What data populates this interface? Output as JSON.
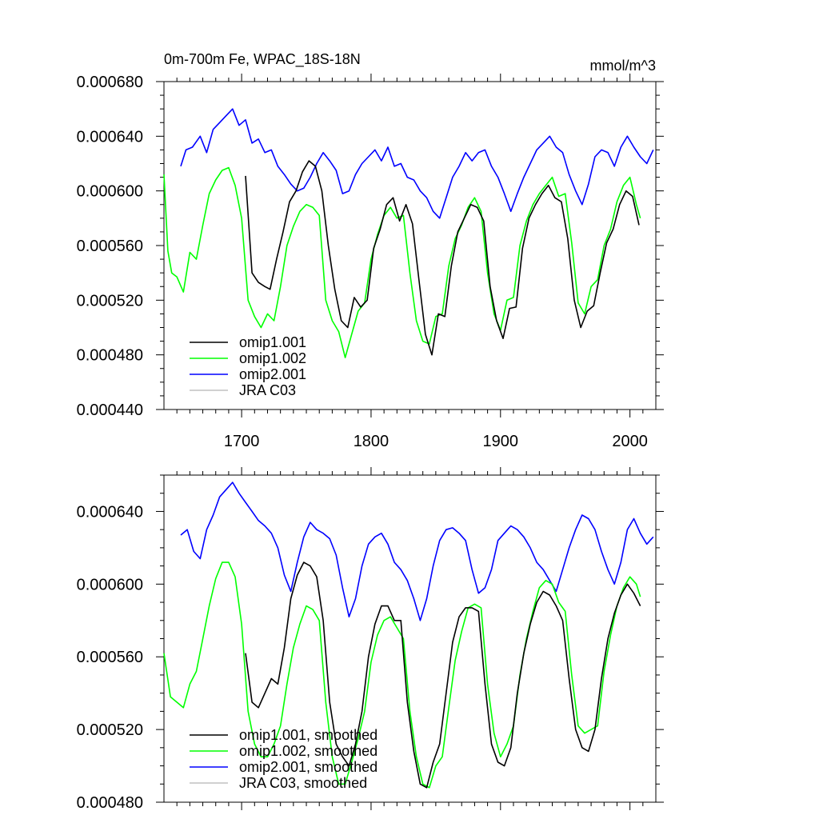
{
  "chart_data": [
    {
      "type": "line",
      "title": "0m-700m Fe, WPAC_18S-18N",
      "units": "mmol/m^3",
      "xlim": [
        1640,
        2020
      ],
      "ylim": [
        0.00044,
        0.00068
      ],
      "xticks": [
        "1700",
        "1800",
        "1900",
        "2000"
      ],
      "yticks": [
        "0.000440",
        "0.000480",
        "0.000520",
        "0.000560",
        "0.000600",
        "0.000640",
        "0.000680"
      ],
      "legend_position": "bottom-left",
      "series": [
        {
          "name": "omip1.001",
          "color": "#000000",
          "x": [
            1703,
            1708,
            1713,
            1718,
            1722,
            1727,
            1732,
            1737,
            1742,
            1747,
            1752,
            1757,
            1762,
            1767,
            1772,
            1777,
            1782,
            1787,
            1792,
            1797,
            1802,
            1807,
            1812,
            1817,
            1822,
            1827,
            1832,
            1837,
            1842,
            1847,
            1852,
            1857,
            1862,
            1867,
            1872,
            1877,
            1882,
            1887,
            1892,
            1897,
            1902,
            1907,
            1912,
            1917,
            1922,
            1927,
            1932,
            1937,
            1942,
            1947,
            1952,
            1957,
            1962,
            1967,
            1972,
            1977,
            1982,
            1987,
            1992,
            1997,
            2002,
            2007
          ],
          "values": [
            0.000611,
            0.00054,
            0.000533,
            0.00053,
            0.000528,
            0.00055,
            0.00057,
            0.000592,
            0.0006,
            0.000614,
            0.000622,
            0.000618,
            0.0006,
            0.00056,
            0.000528,
            0.000505,
            0.0005,
            0.000522,
            0.000515,
            0.00052,
            0.000558,
            0.000572,
            0.00059,
            0.000595,
            0.000578,
            0.00059,
            0.000576,
            0.000535,
            0.000495,
            0.00048,
            0.00051,
            0.000508,
            0.000545,
            0.00057,
            0.00058,
            0.00059,
            0.000588,
            0.000578,
            0.00053,
            0.000505,
            0.000492,
            0.000514,
            0.000515,
            0.000558,
            0.00058,
            0.00059,
            0.000598,
            0.000604,
            0.000595,
            0.000592,
            0.000565,
            0.00052,
            0.0005,
            0.000512,
            0.000516,
            0.00054,
            0.000562,
            0.000572,
            0.00059,
            0.0006,
            0.000596,
            0.000575
          ]
        },
        {
          "name": "omip1.002",
          "color": "#00ff00",
          "x": [
            1640,
            1643,
            1646,
            1650,
            1655,
            1660,
            1665,
            1670,
            1675,
            1680,
            1685,
            1690,
            1695,
            1700,
            1705,
            1710,
            1715,
            1720,
            1725,
            1730,
            1735,
            1740,
            1745,
            1750,
            1755,
            1760,
            1765,
            1770,
            1775,
            1780,
            1785,
            1790,
            1795,
            1800,
            1805,
            1810,
            1815,
            1820,
            1825,
            1830,
            1835,
            1840,
            1845,
            1850,
            1855,
            1860,
            1865,
            1870,
            1875,
            1880,
            1885,
            1890,
            1895,
            1900,
            1905,
            1910,
            1915,
            1920,
            1925,
            1930,
            1935,
            1940,
            1945,
            1950,
            1955,
            1960,
            1965,
            1970,
            1975,
            1980,
            1985,
            1990,
            1995,
            2000,
            2005,
            2008
          ],
          "values": [
            0.000612,
            0.000556,
            0.00054,
            0.000537,
            0.000526,
            0.000555,
            0.00055,
            0.000575,
            0.000598,
            0.000608,
            0.000615,
            0.000617,
            0.000604,
            0.00058,
            0.00052,
            0.000508,
            0.0005,
            0.00051,
            0.000505,
            0.00053,
            0.00056,
            0.000574,
            0.000585,
            0.00059,
            0.000588,
            0.000582,
            0.00052,
            0.000505,
            0.000497,
            0.000478,
            0.000495,
            0.000512,
            0.000518,
            0.00055,
            0.000568,
            0.000582,
            0.000588,
            0.00058,
            0.000582,
            0.00054,
            0.000505,
            0.00049,
            0.000488,
            0.000508,
            0.00051,
            0.000545,
            0.000565,
            0.000575,
            0.000588,
            0.000595,
            0.000585,
            0.00054,
            0.00051,
            0.000498,
            0.00052,
            0.000522,
            0.00056,
            0.000578,
            0.00059,
            0.000598,
            0.000604,
            0.00061,
            0.000596,
            0.000598,
            0.000562,
            0.000518,
            0.00051,
            0.00053,
            0.000535,
            0.00056,
            0.000572,
            0.000592,
            0.000604,
            0.00061,
            0.00059,
            0.00058
          ]
        },
        {
          "name": "omip2.001",
          "color": "#0000ff",
          "x": [
            1653,
            1657,
            1662,
            1668,
            1673,
            1678,
            1683,
            1688,
            1693,
            1698,
            1703,
            1708,
            1713,
            1718,
            1723,
            1728,
            1733,
            1738,
            1743,
            1748,
            1753,
            1758,
            1763,
            1768,
            1773,
            1778,
            1783,
            1788,
            1793,
            1798,
            1803,
            1808,
            1813,
            1818,
            1823,
            1828,
            1833,
            1838,
            1843,
            1848,
            1853,
            1858,
            1863,
            1868,
            1873,
            1878,
            1883,
            1888,
            1893,
            1898,
            1903,
            1908,
            1913,
            1918,
            1923,
            1928,
            1933,
            1938,
            1943,
            1948,
            1953,
            1958,
            1963,
            1968,
            1973,
            1978,
            1983,
            1988,
            1993,
            1998,
            2003,
            2008,
            2013,
            2018
          ],
          "values": [
            0.000618,
            0.00063,
            0.000632,
            0.00064,
            0.000628,
            0.000645,
            0.00065,
            0.000655,
            0.00066,
            0.000648,
            0.000652,
            0.000635,
            0.000638,
            0.000628,
            0.00063,
            0.000618,
            0.000612,
            0.000605,
            0.0006,
            0.000602,
            0.00061,
            0.00062,
            0.000628,
            0.000622,
            0.000615,
            0.000598,
            0.0006,
            0.000612,
            0.00062,
            0.000625,
            0.00063,
            0.000622,
            0.000632,
            0.000618,
            0.00062,
            0.00061,
            0.000608,
            0.0006,
            0.000595,
            0.000585,
            0.00058,
            0.000595,
            0.00061,
            0.000618,
            0.000628,
            0.000622,
            0.000628,
            0.00063,
            0.000618,
            0.00061,
            0.000598,
            0.000585,
            0.000598,
            0.00061,
            0.00062,
            0.00063,
            0.000635,
            0.00064,
            0.000632,
            0.000628,
            0.000612,
            0.0006,
            0.00059,
            0.000605,
            0.000625,
            0.00063,
            0.000628,
            0.000618,
            0.000632,
            0.00064,
            0.000632,
            0.000625,
            0.00062,
            0.00063
          ]
        },
        {
          "name": "JRA C03",
          "color": "#c0c0c0",
          "x": [],
          "values": []
        }
      ]
    },
    {
      "type": "line",
      "xlim": [
        1640,
        2020
      ],
      "ylim": [
        0.00048,
        0.00066
      ],
      "xticks": [],
      "yticks": [
        "0.000480",
        "0.000520",
        "0.000560",
        "0.000600",
        "0.000640"
      ],
      "legend_position": "bottom-left",
      "series": [
        {
          "name": "omip1.001, smoothed",
          "color": "#000000",
          "x": [
            1703,
            1708,
            1713,
            1718,
            1723,
            1728,
            1733,
            1738,
            1743,
            1748,
            1753,
            1758,
            1763,
            1768,
            1773,
            1778,
            1783,
            1788,
            1793,
            1798,
            1803,
            1808,
            1813,
            1818,
            1823,
            1828,
            1833,
            1838,
            1843,
            1848,
            1853,
            1858,
            1863,
            1868,
            1873,
            1878,
            1883,
            1888,
            1893,
            1898,
            1903,
            1908,
            1913,
            1918,
            1923,
            1928,
            1933,
            1938,
            1943,
            1948,
            1953,
            1958,
            1963,
            1968,
            1973,
            1978,
            1983,
            1988,
            1993,
            1998,
            2003,
            2008
          ],
          "values": [
            0.000562,
            0.000535,
            0.000532,
            0.00054,
            0.000548,
            0.000545,
            0.000565,
            0.000592,
            0.000605,
            0.000612,
            0.00061,
            0.000604,
            0.00058,
            0.000535,
            0.000512,
            0.000505,
            0.0005,
            0.000512,
            0.00053,
            0.00056,
            0.000578,
            0.000588,
            0.000588,
            0.00058,
            0.00058,
            0.000535,
            0.000508,
            0.00049,
            0.000488,
            0.000502,
            0.000512,
            0.00054,
            0.000568,
            0.000582,
            0.000587,
            0.000587,
            0.000585,
            0.000545,
            0.000512,
            0.000502,
            0.0005,
            0.00051,
            0.00054,
            0.000562,
            0.000578,
            0.00059,
            0.000596,
            0.000594,
            0.000588,
            0.00058,
            0.000548,
            0.00052,
            0.00051,
            0.000508,
            0.00052,
            0.000548,
            0.00057,
            0.000584,
            0.000594,
            0.0006,
            0.000595,
            0.000588
          ]
        },
        {
          "name": "omip1.002, smoothed",
          "color": "#00ff00",
          "x": [
            1640,
            1645,
            1650,
            1655,
            1660,
            1665,
            1670,
            1675,
            1680,
            1685,
            1690,
            1695,
            1700,
            1705,
            1710,
            1715,
            1720,
            1725,
            1730,
            1735,
            1740,
            1745,
            1750,
            1755,
            1760,
            1765,
            1770,
            1775,
            1780,
            1785,
            1790,
            1795,
            1800,
            1805,
            1810,
            1815,
            1820,
            1825,
            1830,
            1835,
            1840,
            1845,
            1850,
            1855,
            1860,
            1865,
            1870,
            1875,
            1880,
            1885,
            1890,
            1895,
            1900,
            1905,
            1910,
            1915,
            1920,
            1925,
            1930,
            1935,
            1940,
            1945,
            1950,
            1955,
            1960,
            1965,
            1970,
            1975,
            1980,
            1985,
            1990,
            1995,
            2000,
            2005,
            2008
          ],
          "values": [
            0.000562,
            0.000538,
            0.000535,
            0.000532,
            0.000545,
            0.000552,
            0.00057,
            0.000588,
            0.000603,
            0.000612,
            0.000612,
            0.000604,
            0.000578,
            0.00053,
            0.000512,
            0.000505,
            0.000505,
            0.000512,
            0.000522,
            0.000545,
            0.000565,
            0.000578,
            0.000588,
            0.000586,
            0.00058,
            0.000535,
            0.000505,
            0.00049,
            0.00049,
            0.000502,
            0.000515,
            0.00053,
            0.000557,
            0.000572,
            0.00058,
            0.000582,
            0.000576,
            0.00057,
            0.00053,
            0.000505,
            0.00049,
            0.000488,
            0.0005,
            0.000505,
            0.000532,
            0.000558,
            0.000574,
            0.000587,
            0.000589,
            0.000587,
            0.000545,
            0.000518,
            0.000505,
            0.000512,
            0.000522,
            0.00055,
            0.00057,
            0.000585,
            0.000598,
            0.000602,
            0.0006,
            0.00059,
            0.000585,
            0.00055,
            0.000522,
            0.000518,
            0.00052,
            0.000522,
            0.000552,
            0.000572,
            0.000588,
            0.000598,
            0.000604,
            0.0006,
            0.000593
          ]
        },
        {
          "name": "omip2.001, smoothed",
          "color": "#0000ff",
          "x": [
            1653,
            1658,
            1663,
            1668,
            1673,
            1678,
            1683,
            1688,
            1693,
            1698,
            1703,
            1708,
            1713,
            1718,
            1723,
            1728,
            1733,
            1738,
            1743,
            1748,
            1753,
            1758,
            1763,
            1768,
            1773,
            1778,
            1783,
            1788,
            1793,
            1798,
            1803,
            1808,
            1813,
            1818,
            1823,
            1828,
            1833,
            1838,
            1843,
            1848,
            1853,
            1858,
            1863,
            1868,
            1873,
            1878,
            1883,
            1888,
            1893,
            1898,
            1903,
            1908,
            1913,
            1918,
            1923,
            1928,
            1933,
            1938,
            1943,
            1948,
            1953,
            1958,
            1963,
            1968,
            1973,
            1978,
            1983,
            1988,
            1993,
            1998,
            2003,
            2008,
            2013,
            2018
          ],
          "values": [
            0.000627,
            0.00063,
            0.000618,
            0.000614,
            0.00063,
            0.000638,
            0.000648,
            0.000652,
            0.000656,
            0.00065,
            0.000645,
            0.00064,
            0.000635,
            0.000632,
            0.000628,
            0.00062,
            0.000605,
            0.000596,
            0.000612,
            0.000626,
            0.000634,
            0.00063,
            0.000628,
            0.000625,
            0.000616,
            0.000598,
            0.000582,
            0.000592,
            0.00061,
            0.000622,
            0.000626,
            0.000628,
            0.000622,
            0.000612,
            0.000608,
            0.000602,
            0.000592,
            0.00058,
            0.000592,
            0.00061,
            0.000624,
            0.00063,
            0.000631,
            0.000628,
            0.000624,
            0.000608,
            0.000595,
            0.000598,
            0.000608,
            0.000624,
            0.000628,
            0.000632,
            0.00063,
            0.000626,
            0.00062,
            0.000612,
            0.000608,
            0.000602,
            0.000596,
            0.000608,
            0.00062,
            0.00063,
            0.000638,
            0.000636,
            0.00063,
            0.000618,
            0.000608,
            0.0006,
            0.000612,
            0.00063,
            0.000636,
            0.000628,
            0.000622,
            0.000626
          ]
        },
        {
          "name": "JRA C03, smoothed",
          "color": "#c0c0c0",
          "x": [],
          "values": []
        }
      ]
    }
  ]
}
